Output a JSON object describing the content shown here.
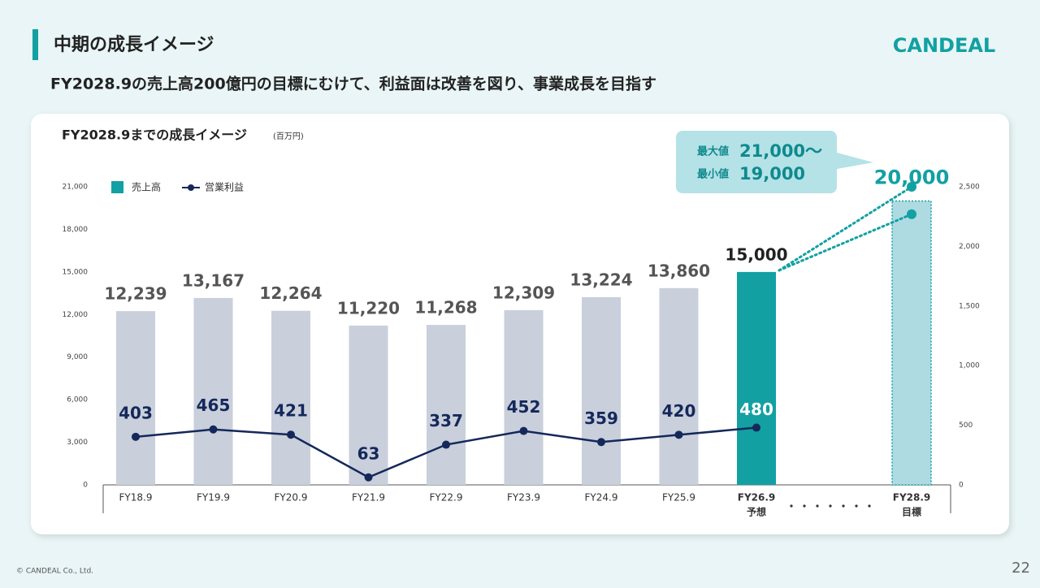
{
  "header": {
    "title": "中期の成長イメージ",
    "subtitle": "FY2028.9の売上高200億円の目標にむけて、利益面は改善を図り、事業成長を目指す",
    "logo": "CANDEAL"
  },
  "footer": {
    "copyright": "© CANDEAL Co., Ltd.",
    "page": "22"
  },
  "chart_data": {
    "type": "bar",
    "title": "FY2028.9までの成長イメージ",
    "unit": "(百万円)",
    "categories": [
      "FY18.9",
      "FY19.9",
      "FY20.9",
      "FY21.9",
      "FY22.9",
      "FY23.9",
      "FY24.9",
      "FY25.9",
      "FY26.9",
      null,
      "FY28.9"
    ],
    "category_sublabels": [
      null,
      null,
      null,
      null,
      null,
      null,
      null,
      null,
      "予想",
      null,
      "目標"
    ],
    "series": [
      {
        "name": "売上高",
        "color": "#12a0a3",
        "colors": [
          "#c9cfdb",
          "#c9cfdb",
          "#c9cfdb",
          "#c9cfdb",
          "#c9cfdb",
          "#c9cfdb",
          "#c9cfdb",
          "#c9cfdb",
          "#12a0a3",
          null,
          "#aedbe2"
        ],
        "values": [
          12239,
          13167,
          12264,
          11220,
          11268,
          12309,
          13224,
          13860,
          15000,
          null,
          20000
        ],
        "value_labels": [
          "12,239",
          "13,167",
          "12,264",
          "11,220",
          "11,268",
          "12,309",
          "13,224",
          "13,860",
          "15,000",
          null,
          "20,000"
        ]
      },
      {
        "name": "営業利益",
        "type": "line",
        "axis": "y2",
        "color": "#14285a",
        "values": [
          403,
          465,
          421,
          63,
          337,
          452,
          359,
          420,
          480,
          null,
          null
        ],
        "target_points": [
          2500,
          2270
        ]
      }
    ],
    "ylim": [
      0,
      21000
    ],
    "yticks": [
      0,
      {
        "value": 3000,
        "label": "3,000"
      },
      {
        "value": 6000,
        "label": "6,000"
      },
      {
        "value": 9000,
        "label": "9,000"
      },
      {
        "value": 12000,
        "label": "12,000"
      },
      {
        "value": 15000,
        "label": "15,000"
      },
      {
        "value": 18000,
        "label": "18,000"
      },
      {
        "value": 21000,
        "label": "21,000"
      }
    ],
    "y2lim": [
      0,
      2500
    ],
    "y2ticks": [
      0,
      500,
      {
        "value": 1000,
        "label": "1,000"
      },
      {
        "value": 1500,
        "label": "1,500"
      },
      {
        "value": 2000,
        "label": "2,000"
      },
      {
        "value": 2500,
        "label": "2,500"
      }
    ],
    "callout": [
      {
        "prefix": "最大値",
        "value": "21,000〜"
      },
      {
        "prefix": "最小値",
        "value": "19,000"
      }
    ]
  }
}
